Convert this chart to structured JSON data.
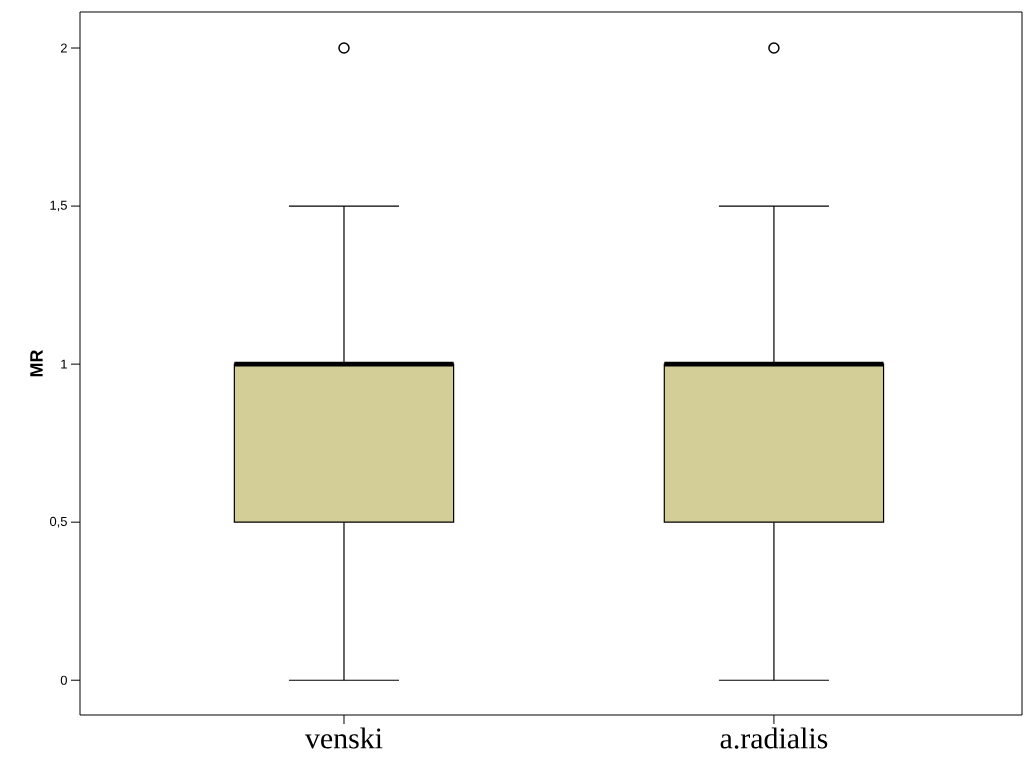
{
  "chart_data": {
    "type": "box",
    "ylabel": "MR",
    "categories": [
      "venski",
      "a.radialis"
    ],
    "boxes": [
      {
        "low": 0,
        "q1": 0.5,
        "median": 1,
        "q3": 1,
        "high": 1.5,
        "outliers": [
          2
        ]
      },
      {
        "low": 0,
        "q1": 0.5,
        "median": 1,
        "q3": 1,
        "high": 1.5,
        "outliers": [
          2
        ]
      }
    ],
    "color": "#d3ce98",
    "ylim": [
      -0.11,
      2.114
    ],
    "yticks": [
      0,
      {
        "value": 0.5,
        "label": "0,5"
      },
      1,
      {
        "value": 1.5,
        "label": "1,5"
      },
      2
    ],
    "grid": false
  }
}
